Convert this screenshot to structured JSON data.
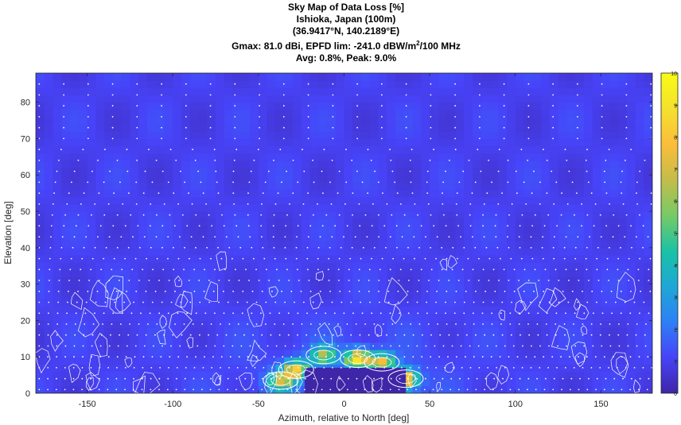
{
  "title": {
    "line1": "Sky Map of Data Loss [%]",
    "line2": "Ishioka, Japan (100m)",
    "line3": "(36.9417°N, 140.2189°E)",
    "line4_prefix": "Gmax: 81.0 dBi, EPFD lim: -241.0 dBW/m",
    "line4_sup": "2",
    "line4_suffix": "/100 MHz",
    "line5": "Avg: 0.8%, Peak: 9.0%"
  },
  "chart_data": {
    "type": "heatmap",
    "xlabel": "Azimuth, relative to North [deg]",
    "ylabel": "Elevation [deg]",
    "xlim": [
      -180,
      180
    ],
    "ylim": [
      0,
      88
    ],
    "xticks": [
      -150,
      -100,
      -50,
      0,
      50,
      100,
      150
    ],
    "yticks": [
      0,
      10,
      20,
      30,
      40,
      50,
      60,
      70,
      80
    ],
    "colorbar": {
      "cmap": "parula",
      "range": [
        0,
        10
      ],
      "ticks": [
        0,
        1,
        2,
        3,
        4,
        5,
        6,
        7,
        8,
        9,
        10
      ]
    },
    "stats": {
      "avg_percent": 0.8,
      "peak_percent": 9.0
    },
    "background_value": 1.0,
    "grid_points": {
      "az_step_deg": 5,
      "el_step_deg": 3
    },
    "blocked_region": {
      "az_range": [
        -23,
        36
      ],
      "el_max": 7
    },
    "hotspots": [
      {
        "az": -37,
        "el": 3.5,
        "value": 6.5
      },
      {
        "az": -28,
        "el": 6.5,
        "value": 8.0
      },
      {
        "az": -12,
        "el": 10.5,
        "value": 6.0
      },
      {
        "az": 8,
        "el": 9.5,
        "value": 9.0
      },
      {
        "az": 22,
        "el": 8.5,
        "value": 7.5
      },
      {
        "az": 36,
        "el": 4.0,
        "value": 8.5
      }
    ]
  },
  "colors": {
    "parula": [
      "#3e26a8",
      "#4743f8",
      "#2d80f6",
      "#1ea7d6",
      "#1ac2a5",
      "#77ca66",
      "#c3bd4a",
      "#fbbd3a",
      "#f4e12e",
      "#f9fb14"
    ]
  }
}
